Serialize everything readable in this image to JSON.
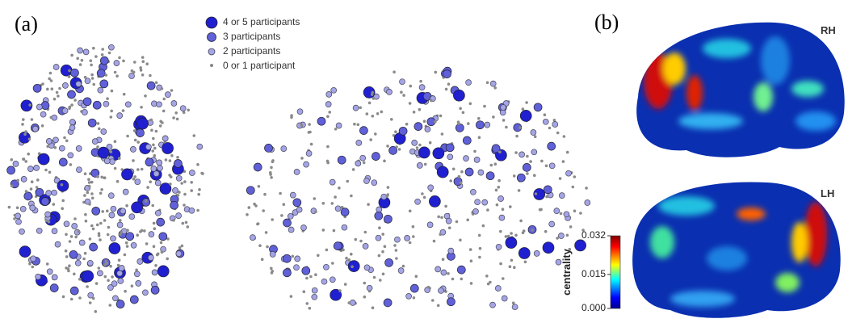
{
  "panel_a": {
    "label": "(a)",
    "legend": [
      "4 or 5 participants",
      "3 participants",
      "2 participants",
      "0 or 1 participant"
    ]
  },
  "panel_b": {
    "label": "(b)",
    "hemispheres": [
      "RH",
      "LH"
    ],
    "colorbar": {
      "label": "centrality",
      "ticks": [
        {
          "value": 0,
          "label": "0.000"
        },
        0.015,
        0.032
      ]
    }
  }
}
